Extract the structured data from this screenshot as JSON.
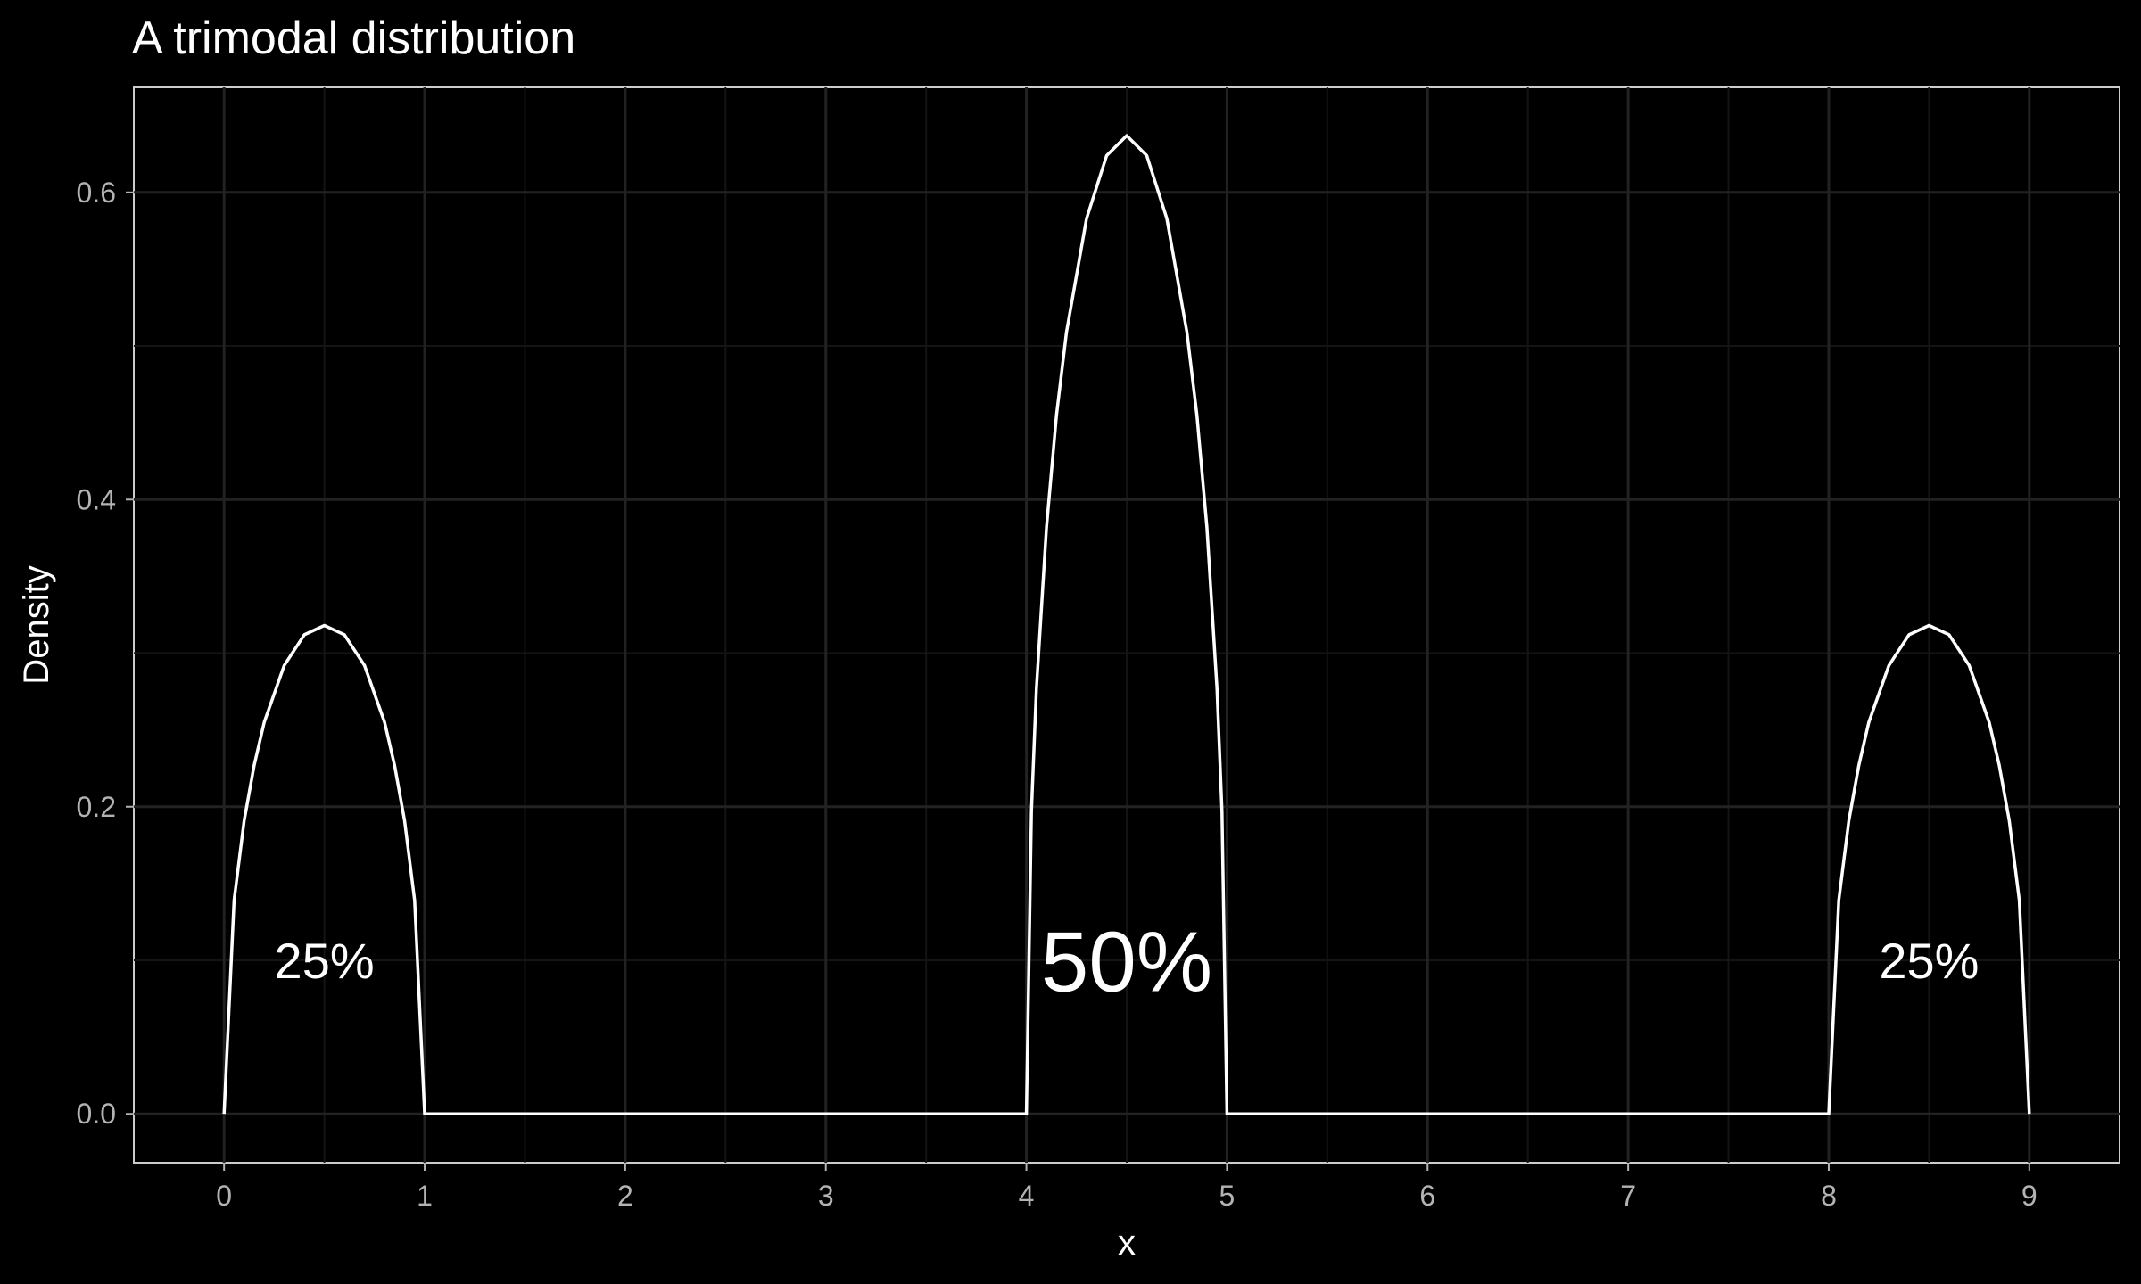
{
  "chart_data": {
    "type": "line",
    "title": "A trimodal distribution",
    "xlabel": "x",
    "ylabel": "Density",
    "xlim": [
      -0.45,
      9.45
    ],
    "ylim": [
      -0.0318,
      0.6684
    ],
    "x_ticks": [
      0,
      1,
      2,
      3,
      4,
      5,
      6,
      7,
      8,
      9
    ],
    "x_tick_labels": [
      "0",
      "1",
      "2",
      "3",
      "4",
      "5",
      "6",
      "7",
      "8",
      "9"
    ],
    "y_ticks": [
      0.0,
      0.2,
      0.4,
      0.6
    ],
    "y_tick_labels": [
      "0.0",
      "0.2",
      "0.4",
      "0.6"
    ],
    "grid": true,
    "legend": "none",
    "series": [
      {
        "x": [
          0,
          0.05,
          0.1,
          0.15,
          0.2,
          0.3,
          0.4,
          0.5,
          0.6,
          0.7,
          0.8,
          0.85,
          0.9,
          0.95,
          1,
          4,
          4.025,
          4.05,
          4.1,
          4.15,
          4.2,
          4.3,
          4.4,
          4.5,
          4.6,
          4.7,
          4.8,
          4.85,
          4.9,
          4.95,
          4.975,
          5,
          8,
          8.05,
          8.1,
          8.15,
          8.2,
          8.3,
          8.4,
          8.5,
          8.6,
          8.7,
          8.8,
          8.85,
          8.9,
          8.95,
          9
        ],
        "y": [
          0,
          0.139,
          0.191,
          0.227,
          0.255,
          0.292,
          0.312,
          0.318,
          0.312,
          0.292,
          0.255,
          0.227,
          0.191,
          0.139,
          0,
          0,
          0.197,
          0.277,
          0.382,
          0.455,
          0.509,
          0.583,
          0.624,
          0.637,
          0.624,
          0.583,
          0.509,
          0.455,
          0.382,
          0.277,
          0.197,
          0,
          0,
          0.139,
          0.191,
          0.227,
          0.255,
          0.292,
          0.312,
          0.318,
          0.312,
          0.292,
          0.255,
          0.227,
          0.191,
          0.139,
          0
        ]
      }
    ],
    "annotations": [
      {
        "text": "25%",
        "x": 0.5,
        "y": 0.1,
        "size": "medium"
      },
      {
        "text": "50%",
        "x": 4.5,
        "y": 0.1,
        "size": "large"
      },
      {
        "text": "25%",
        "x": 8.5,
        "y": 0.1,
        "size": "medium"
      }
    ],
    "colors": {
      "background": "#000000",
      "line": "#ffffff",
      "text": "#ffffff",
      "tick_text": "#b3b3b3",
      "grid_major": "#222222",
      "grid_minor": "#141414",
      "panel_border": "#cccccc"
    }
  }
}
